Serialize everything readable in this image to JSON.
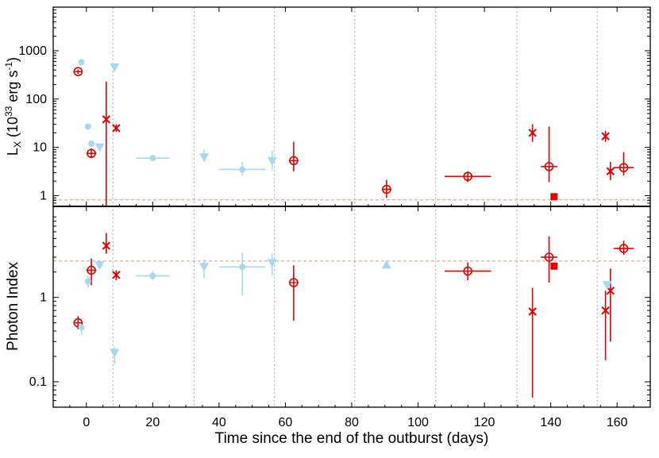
{
  "chart_data": {
    "type": "scatter",
    "shared_x": {
      "label": "Time since the end of the outburst (days)",
      "range": [
        -10,
        170
      ],
      "ticks": [
        0,
        20,
        40,
        60,
        80,
        100,
        120,
        140,
        160
      ],
      "tick_labels": [
        "0",
        "20",
        "40",
        "60",
        "80",
        "100",
        "120",
        "140",
        "160"
      ]
    },
    "vertical_dotted_lines_x": [
      8,
      32.5,
      56.7,
      80.9,
      105.3,
      129.8,
      154
    ],
    "panels": [
      {
        "id": "top",
        "ylabel_main": "L",
        "ylabel_sub": "X",
        "ylabel_rest": " (10",
        "ylabel_sup1": "33",
        "ylabel_mid": " erg s",
        "ylabel_sup2": "-1",
        "ylabel_end": ")",
        "yscale": "log",
        "ylim": [
          0.6,
          8000
        ],
        "ytick_values": [
          1,
          10,
          100,
          1000
        ],
        "ytick_labels": [
          "1",
          "10",
          "100",
          "1000"
        ],
        "reference_line_y": 0.82,
        "series": [
          {
            "name": "open circle",
            "marker": "open-circle",
            "color": "#e00000",
            "points": [
              {
                "x": -2.5,
                "y": 370,
                "ylo": 330,
                "yhi": 410,
                "xlo": -3.2,
                "xhi": -1.8
              },
              {
                "x": 1.5,
                "y": 7.5,
                "ylo": 6,
                "yhi": 9.5,
                "xlo": 0,
                "xhi": 3
              },
              {
                "x": 62.5,
                "y": 5.3,
                "ylo": 3.2,
                "yhi": 13,
                "xlo": 61.5,
                "xhi": 63.5
              },
              {
                "x": 90.5,
                "y": 1.35,
                "ylo": 0.9,
                "yhi": 2.1,
                "xlo": 89.5,
                "xhi": 91.5
              },
              {
                "x": 115,
                "y": 2.5,
                "ylo": 1.9,
                "yhi": 3.2,
                "xlo": 108,
                "xhi": 122
              },
              {
                "x": 139.5,
                "y": 4,
                "ylo": 1.9,
                "yhi": 27,
                "xlo": 137,
                "xhi": 142
              },
              {
                "x": 162,
                "y": 3.8,
                "ylo": 2.6,
                "yhi": 8,
                "xlo": 159,
                "xhi": 165
              }
            ]
          },
          {
            "name": "cross",
            "marker": "cross",
            "color": "#e00000",
            "points": [
              {
                "x": 6,
                "y": 38,
                "ylo": 0.6,
                "yhi": 230,
                "xlo": 6,
                "xhi": 6
              },
              {
                "x": 9,
                "y": 25,
                "ylo": 21,
                "yhi": 30,
                "xlo": 9,
                "xhi": 9
              },
              {
                "x": 134.5,
                "y": 20,
                "ylo": 13,
                "yhi": 30,
                "xlo": 134.5,
                "xhi": 134.5
              },
              {
                "x": 156.5,
                "y": 17,
                "ylo": 13,
                "yhi": 22,
                "xlo": 156.5,
                "xhi": 156.5
              },
              {
                "x": 158,
                "y": 3.2,
                "ylo": 2.1,
                "yhi": 5,
                "xlo": 158,
                "xhi": 158
              }
            ]
          },
          {
            "name": "filled square",
            "marker": "filled-square",
            "color": "#e00000",
            "points": [
              {
                "x": 141,
                "y": 0.95
              }
            ]
          },
          {
            "name": "filled circle",
            "marker": "filled-circle",
            "color": "#a8d8ea",
            "points": [
              {
                "x": -1.5,
                "y": 580
              },
              {
                "x": 0.5,
                "y": 27
              },
              {
                "x": 1.5,
                "y": 12
              },
              {
                "x": 20,
                "y": 6,
                "ylo": 5.3,
                "yhi": 6.7,
                "xlo": 15,
                "xhi": 25
              },
              {
                "x": 47,
                "y": 3.5,
                "ylo": 2.6,
                "yhi": 5,
                "xlo": 40,
                "xhi": 54
              }
            ]
          },
          {
            "name": "down triangle",
            "marker": "down-triangle",
            "color": "#a8d8ea",
            "points": [
              {
                "x": 4,
                "y": 10
              },
              {
                "x": 8.5,
                "y": 450
              },
              {
                "x": 35.5,
                "y": 6.2,
                "ylo": 5,
                "yhi": 9,
                "xlo": 35.5,
                "xhi": 35.5
              },
              {
                "x": 56,
                "y": 5.2,
                "ylo": 3.5,
                "yhi": 8.5,
                "xlo": 56,
                "xhi": 56
              }
            ]
          }
        ]
      },
      {
        "id": "bottom",
        "ylabel": "Photon Index",
        "yscale": "log",
        "ylim": [
          0.05,
          12
        ],
        "ytick_values": [
          0.1,
          1
        ],
        "ytick_labels": [
          "0.1",
          "1"
        ],
        "reference_line_y": 2.7,
        "series": [
          {
            "name": "open circle",
            "marker": "open-circle",
            "color": "#e00000",
            "points": [
              {
                "x": -2.5,
                "y": 0.5,
                "ylo": 0.42,
                "yhi": 0.6,
                "xlo": -3.2,
                "xhi": -1.8
              },
              {
                "x": 1.5,
                "y": 2.1,
                "ylo": 1.4,
                "yhi": 2.9,
                "xlo": 0,
                "xhi": 3
              },
              {
                "x": 62.5,
                "y": 1.5,
                "ylo": 0.53,
                "yhi": 2.4,
                "xlo": 62.5,
                "xhi": 62.5
              },
              {
                "x": 115,
                "y": 2.05,
                "ylo": 1.6,
                "yhi": 2.6,
                "xlo": 108,
                "xhi": 122
              },
              {
                "x": 139.5,
                "y": 3,
                "ylo": 1.5,
                "yhi": 5.3,
                "xlo": 137,
                "xhi": 142
              },
              {
                "x": 162,
                "y": 3.8,
                "ylo": 3.2,
                "yhi": 4.7,
                "xlo": 159,
                "xhi": 165
              }
            ]
          },
          {
            "name": "cross",
            "marker": "cross",
            "color": "#e00000",
            "points": [
              {
                "x": 6,
                "y": 4.1,
                "ylo": 3.3,
                "yhi": 5.8,
                "xlo": 6,
                "xhi": 6
              },
              {
                "x": 9,
                "y": 1.85,
                "ylo": 1.6,
                "yhi": 2.1,
                "xlo": 9,
                "xhi": 9
              },
              {
                "x": 134.5,
                "y": 0.68,
                "ylo": 0.065,
                "yhi": 1.3,
                "xlo": 134.5,
                "xhi": 134.5
              },
              {
                "x": 156.5,
                "y": 0.7,
                "ylo": 0.18,
                "yhi": 1.2,
                "xlo": 156.5,
                "xhi": 156.5
              },
              {
                "x": 158,
                "y": 1.2,
                "ylo": 0.3,
                "yhi": 2.2,
                "xlo": 158,
                "xhi": 158
              }
            ]
          },
          {
            "name": "filled square",
            "marker": "filled-square",
            "color": "#e00000",
            "points": [
              {
                "x": 141,
                "y": 2.35
              }
            ]
          },
          {
            "name": "filled circle",
            "marker": "filled-circle",
            "color": "#a8d8ea",
            "points": [
              {
                "x": -1.5,
                "y": 0.44,
                "ylo": 0.36,
                "yhi": 0.47,
                "xlo": -1.5,
                "xhi": -1.5
              },
              {
                "x": 0.5,
                "y": 1.55,
                "ylo": 1.3,
                "yhi": 1.8,
                "xlo": 0.5,
                "xhi": 0.5
              },
              {
                "x": 20,
                "y": 1.8,
                "ylo": 1.6,
                "yhi": 2.05,
                "xlo": 15,
                "xhi": 25
              },
              {
                "x": 47,
                "y": 2.3,
                "ylo": 1.05,
                "yhi": 3.4,
                "xlo": 40,
                "xhi": 54
              }
            ]
          },
          {
            "name": "down triangle",
            "marker": "down-triangle",
            "color": "#a8d8ea",
            "points": [
              {
                "x": 4,
                "y": 2.4
              },
              {
                "x": 8.5,
                "y": 0.22,
                "ylo": 0.16,
                "yhi": 0.26,
                "xlo": 8.5,
                "xhi": 8.5
              },
              {
                "x": 35.5,
                "y": 2.3,
                "ylo": 1.7,
                "yhi": 2.8,
                "xlo": 35.5,
                "xhi": 35.5
              },
              {
                "x": 56,
                "y": 2.55,
                "ylo": 1.8,
                "yhi": 3.3,
                "xlo": 56,
                "xhi": 56
              },
              {
                "x": 157,
                "y": 1.4
              }
            ]
          },
          {
            "name": "up triangle",
            "marker": "up-triangle",
            "color": "#a8d8ea",
            "points": [
              {
                "x": 90.5,
                "y": 2.45
              }
            ]
          }
        ]
      }
    ]
  }
}
